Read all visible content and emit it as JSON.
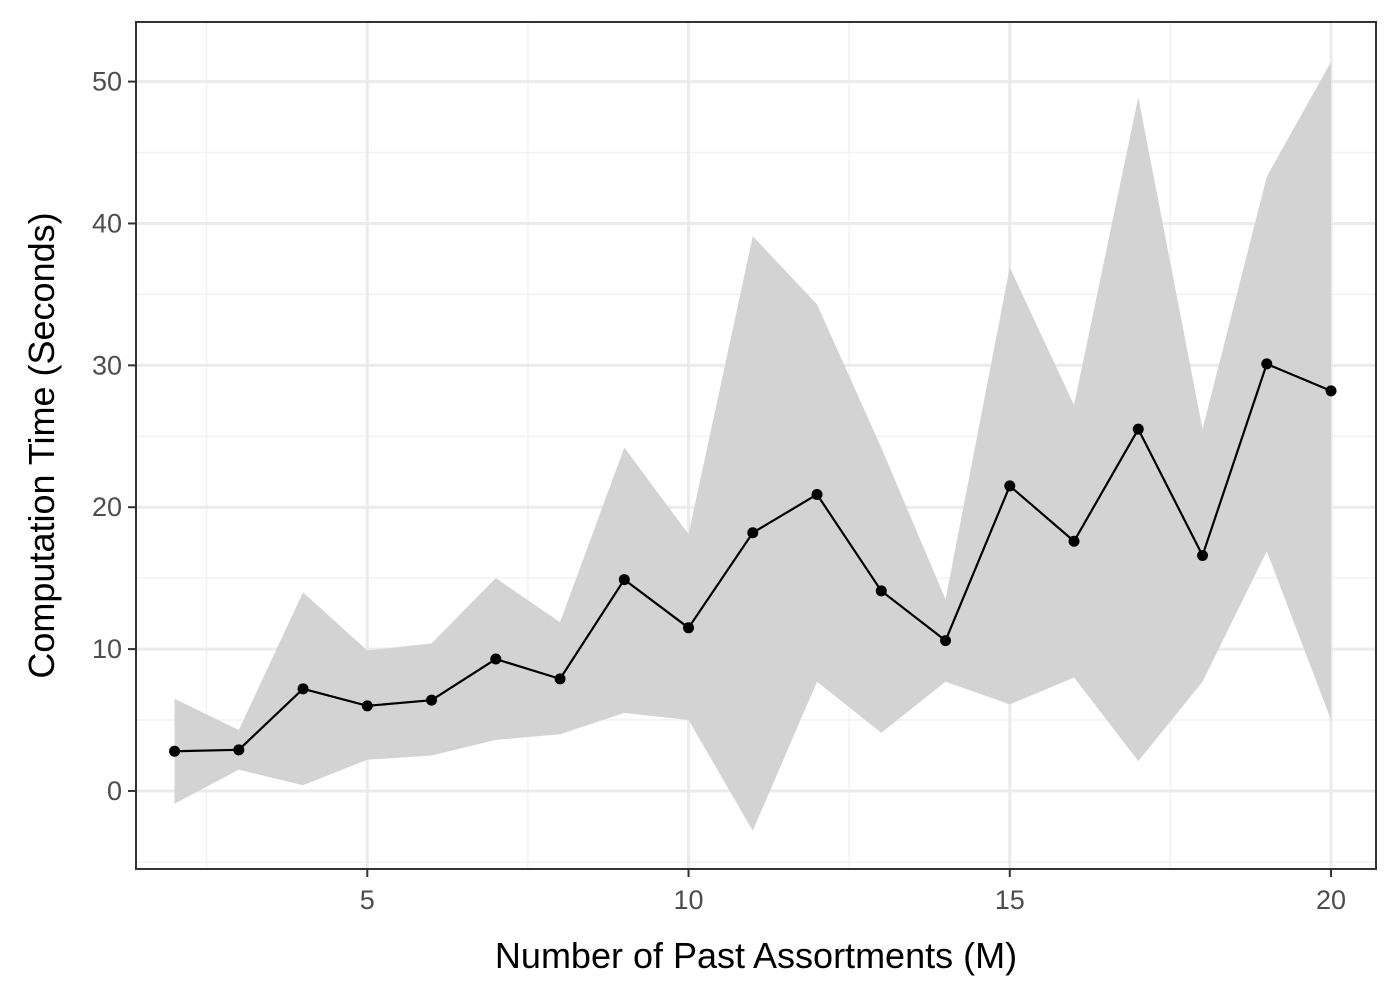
{
  "chart_data": {
    "type": "line",
    "title": "",
    "xlabel": "Number of Past Assortments (M)",
    "ylabel": "Computation Time (Seconds)",
    "xlim": [
      1.4,
      20.7
    ],
    "ylim": [
      -5.5,
      54.2
    ],
    "x_ticks": [
      5,
      10,
      15,
      20
    ],
    "y_ticks": [
      0,
      10,
      20,
      30,
      40,
      50
    ],
    "x_tick_labels": [
      "5",
      "10",
      "15",
      "20"
    ],
    "y_tick_labels": [
      "0",
      "10",
      "20",
      "30",
      "40",
      "50"
    ],
    "grid": true,
    "legend": "none",
    "series": [
      {
        "x": [
          2,
          3,
          4,
          5,
          6,
          7,
          8,
          9,
          10,
          11,
          12,
          13,
          14,
          15,
          16,
          17,
          18,
          19,
          20
        ],
        "values": [
          2.8,
          2.9,
          7.2,
          6.0,
          6.4,
          9.3,
          7.9,
          14.9,
          11.5,
          18.2,
          20.9,
          14.1,
          10.6,
          21.5,
          17.6,
          25.5,
          16.6,
          30.1,
          28.2
        ],
        "lower": [
          -0.9,
          1.5,
          0.4,
          2.2,
          2.5,
          3.6,
          4.0,
          5.5,
          5.0,
          -2.8,
          7.7,
          4.1,
          7.7,
          6.1,
          8.0,
          2.1,
          7.7,
          16.9,
          5.0
        ],
        "upper": [
          6.5,
          4.3,
          14.0,
          9.9,
          10.4,
          15.0,
          11.9,
          24.2,
          18.1,
          39.1,
          34.3,
          24.2,
          13.5,
          36.9,
          27.2,
          48.9,
          25.5,
          43.3,
          51.4
        ]
      }
    ],
    "colors": {
      "line": "#000000",
      "ribbon": "#d3d3d3",
      "grid_major": "#ebebeb",
      "grid_minor": "#f2f2f2",
      "panel_border": "#333333"
    }
  }
}
